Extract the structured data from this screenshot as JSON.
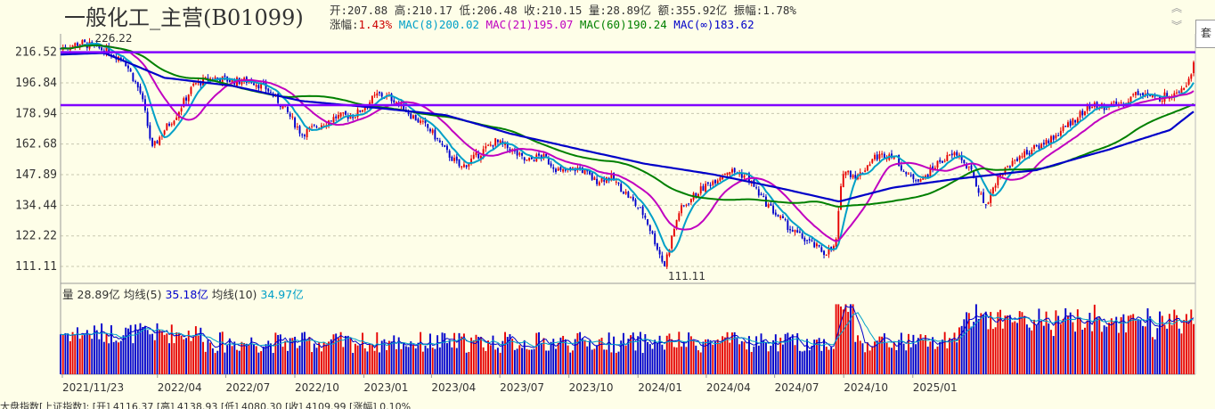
{
  "window": {
    "title": "一般化工_主营(B01099)"
  },
  "quote": {
    "open_label": "开:",
    "open": "207.88",
    "high_label": "高:",
    "high": "210.17",
    "low_label": "低:",
    "low": "206.48",
    "close_label": "收:",
    "close": "210.15",
    "vol_label": "量:",
    "vol": "28.89亿",
    "amount_label": "额:",
    "amount": "355.92亿",
    "amp_label": "振幅:",
    "amp": "1.78%",
    "chg_label": "涨幅:",
    "chg": "1.43%",
    "mac8_label": "MAC(8)",
    "mac8": "200.02",
    "mac21_label": "MAC(21)",
    "mac21": "195.07",
    "mac60_label": "MAC(60)",
    "mac60": "190.24",
    "macinf_label": "MAC(∞)",
    "macinf": "183.62"
  },
  "volume_panel": {
    "label": "量",
    "value": "28.89亿",
    "ma5_label": "均线(5)",
    "ma5": "35.18亿",
    "ma10_label": "均线(10)",
    "ma10": "34.97亿"
  },
  "right_tab": {
    "label": "套"
  },
  "bottom": {
    "text": "大盘指数[上证指数]: [开] 4116.37 [高] 4138.93 [低] 4080.30 [收] 4109.99 [涨幅] 0.10%"
  },
  "colors": {
    "background": "#fefee8",
    "up_bar": "#e60000",
    "down_bar": "#0000cc",
    "mac8": "#00a0c8",
    "mac21": "#c000c0",
    "mac60": "#008000",
    "macinf": "#0000c8",
    "hline": "#8000ff",
    "info_label": "#cc0000",
    "info_value": "#0000cc"
  },
  "chart_data": {
    "type": "candlestick",
    "title": "一般化工_主营(B01099)",
    "y_ticks": [
      216.52,
      196.84,
      178.94,
      162.68,
      147.89,
      134.44,
      122.22,
      111.11
    ],
    "ylim": [
      111.11,
      226.22
    ],
    "x_ticks": [
      "2021/11/23",
      "2022/04",
      "2022/07",
      "2022/10",
      "2023/01",
      "2023/04",
      "2023/07",
      "2023/10",
      "2024/01",
      "2024/04",
      "2024/07",
      "2024/10",
      "2025/01"
    ],
    "annotations": [
      {
        "text": "226.22",
        "kind": "max"
      },
      {
        "text": "111.11",
        "kind": "min"
      }
    ],
    "hlines": [
      216.52,
      183.62
    ],
    "price_path": [
      [
        "2021-11-23",
        219
      ],
      [
        "2021-12-20",
        223
      ],
      [
        "2022-01-20",
        218
      ],
      [
        "2022-02-15",
        212
      ],
      [
        "2022-03-10",
        190
      ],
      [
        "2022-03-25",
        160
      ],
      [
        "2022-04-10",
        170
      ],
      [
        "2022-04-26",
        178
      ],
      [
        "2022-05-20",
        196
      ],
      [
        "2022-06-15",
        200
      ],
      [
        "2022-07-10",
        198
      ],
      [
        "2022-08-05",
        198
      ],
      [
        "2022-08-25",
        193
      ],
      [
        "2022-09-15",
        183
      ],
      [
        "2022-10-10",
        168
      ],
      [
        "2022-10-31",
        172
      ],
      [
        "2022-11-25",
        177
      ],
      [
        "2022-12-20",
        178
      ],
      [
        "2023-01-20",
        190
      ],
      [
        "2023-02-10",
        187
      ],
      [
        "2023-03-05",
        178
      ],
      [
        "2023-03-30",
        170
      ],
      [
        "2023-04-20",
        159
      ],
      [
        "2023-05-10",
        151
      ],
      [
        "2023-06-01",
        157
      ],
      [
        "2023-06-25",
        164
      ],
      [
        "2023-07-15",
        160
      ],
      [
        "2023-08-05",
        154
      ],
      [
        "2023-08-25",
        157
      ],
      [
        "2023-09-20",
        149
      ],
      [
        "2023-10-15",
        151
      ],
      [
        "2023-11-05",
        145
      ],
      [
        "2023-11-25",
        147
      ],
      [
        "2023-12-20",
        138
      ],
      [
        "2024-01-10",
        130
      ],
      [
        "2024-02-05",
        111.11
      ],
      [
        "2024-02-25",
        132
      ],
      [
        "2024-03-20",
        140
      ],
      [
        "2024-04-10",
        145
      ],
      [
        "2024-04-30",
        150
      ],
      [
        "2024-05-25",
        147
      ],
      [
        "2024-06-15",
        137
      ],
      [
        "2024-07-05",
        130
      ],
      [
        "2024-07-25",
        124
      ],
      [
        "2024-08-15",
        120
      ],
      [
        "2024-09-05",
        116
      ],
      [
        "2024-09-20",
        118
      ],
      [
        "2024-09-30",
        150
      ],
      [
        "2024-10-20",
        147
      ],
      [
        "2024-11-10",
        156
      ],
      [
        "2024-12-05",
        158
      ],
      [
        "2024-12-25",
        147
      ],
      [
        "2025-01-15",
        146
      ],
      [
        "2025-02-05",
        154
      ],
      [
        "2025-03-01",
        158
      ],
      [
        "2025-03-20",
        149
      ],
      [
        "2025-04-07",
        134
      ],
      [
        "2025-04-25",
        147
      ],
      [
        "2025-05-20",
        156
      ],
      [
        "2025-06-15",
        161
      ],
      [
        "2025-07-10",
        167
      ],
      [
        "2025-08-05",
        176
      ],
      [
        "2025-08-25",
        183
      ],
      [
        "2025-09-20",
        183
      ],
      [
        "2025-10-10",
        185
      ],
      [
        "2025-10-30",
        192
      ],
      [
        "2025-11-20",
        187
      ],
      [
        "2025-12-10",
        190
      ],
      [
        "2025-12-30",
        196
      ],
      [
        "2026-01-10",
        208
      ]
    ],
    "mac_series": [
      {
        "name": "MAC(8)",
        "last": 200.02
      },
      {
        "name": "MAC(21)",
        "last": 195.07
      },
      {
        "name": "MAC(60)",
        "last": 190.24
      },
      {
        "name": "MAC(∞)",
        "last": 183.62
      }
    ],
    "macinf_path": [
      [
        "2021-11-23",
        215
      ],
      [
        "2022-01-20",
        216
      ],
      [
        "2022-04-10",
        200
      ],
      [
        "2022-07-10",
        195
      ],
      [
        "2022-10-10",
        186
      ],
      [
        "2023-01-20",
        182
      ],
      [
        "2023-04-20",
        178
      ],
      [
        "2023-07-15",
        168
      ],
      [
        "2023-10-15",
        160
      ],
      [
        "2024-01-10",
        153
      ],
      [
        "2024-04-10",
        148
      ],
      [
        "2024-07-05",
        142
      ],
      [
        "2024-09-25",
        136
      ],
      [
        "2024-12-05",
        142
      ],
      [
        "2025-03-01",
        146
      ],
      [
        "2025-06-15",
        150
      ],
      [
        "2025-09-20",
        160
      ],
      [
        "2025-12-10",
        170
      ],
      [
        "2026-01-10",
        180
      ]
    ]
  }
}
